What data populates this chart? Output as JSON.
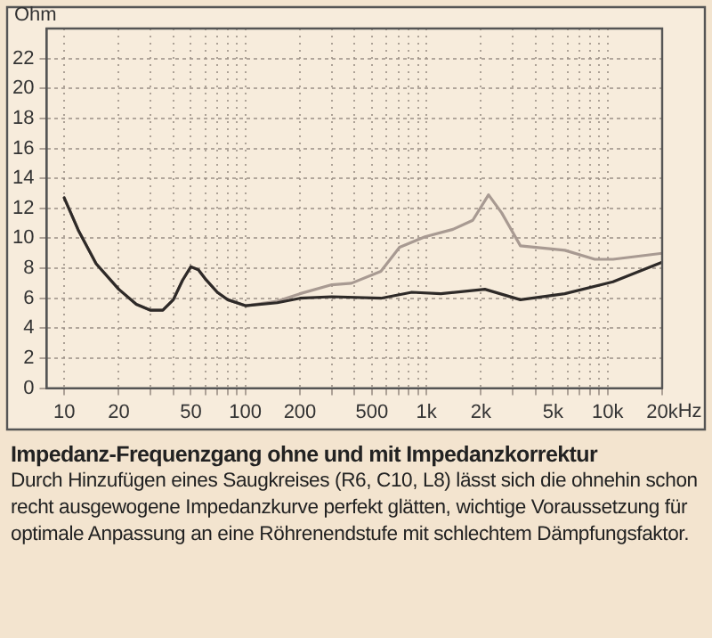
{
  "chart_data": {
    "type": "line",
    "title": "Impedanz-Frequenzgang ohne und mit Impedanzkorrektur",
    "ylabel": "Ohm",
    "annotations": [
      "Durch Hinzufügen eines Saugkreises (R6, C10, L8) lässt sich die ohnehin schon recht ausgewogene Impedanzkurve perfekt glätten, wichtige Voraussetzung für optimale Anpassung an eine Röhrenendstufe mit schlechtem Dämpfungsfaktor."
    ],
    "log": "x",
    "grid": true,
    "legend": false,
    "marker": "none",
    "line_style": "solid",
    "xlim": [
      8,
      20000
    ],
    "ylim": [
      0,
      24
    ],
    "xticks": [
      10,
      20,
      {
        "value": 30,
        "label": null
      },
      {
        "value": 40,
        "label": null
      },
      50,
      {
        "value": 60,
        "label": null
      },
      {
        "value": 70,
        "label": null
      },
      {
        "value": 80,
        "label": null
      },
      {
        "value": 90,
        "label": null
      },
      100,
      200,
      {
        "value": 300,
        "label": null
      },
      {
        "value": 400,
        "label": null
      },
      500,
      {
        "value": 600,
        "label": null
      },
      {
        "value": 700,
        "label": null
      },
      {
        "value": 800,
        "label": null
      },
      {
        "value": 900,
        "label": null
      },
      {
        "value": 1000,
        "label": "1k"
      },
      {
        "value": 2000,
        "label": "2k"
      },
      {
        "value": 3000,
        "label": null
      },
      {
        "value": 4000,
        "label": null
      },
      {
        "value": 5000,
        "label": "5k"
      },
      {
        "value": 6000,
        "label": null
      },
      {
        "value": 7000,
        "label": null
      },
      {
        "value": 8000,
        "label": null
      },
      {
        "value": 9000,
        "label": null
      },
      {
        "value": 10000,
        "label": "10k"
      },
      {
        "value": 20000,
        "label": "20k"
      }
    ],
    "xlabel": "Hz",
    "yticks": [
      0,
      2,
      4,
      6,
      8,
      10,
      12,
      14,
      16,
      18,
      20,
      22
    ],
    "series": [
      {
        "color": "#a89a92",
        "x": [
          10,
          12,
          15,
          20,
          25,
          30,
          35,
          40,
          45,
          50,
          55,
          60,
          70,
          80,
          100,
          150,
          200,
          300,
          385,
          560,
          710,
          980,
          1400,
          1800,
          2200,
          2600,
          3300,
          5800,
          8500,
          10700,
          20000
        ],
        "values": [
          12.7,
          10.5,
          8.3,
          6.6,
          5.6,
          5.2,
          5.2,
          5.9,
          7.2,
          8.1,
          7.9,
          7.3,
          6.4,
          5.9,
          5.5,
          5.8,
          6.3,
          6.9,
          7.0,
          7.8,
          9.4,
          10.1,
          10.6,
          11.2,
          12.9,
          11.7,
          9.5,
          9.2,
          8.6,
          8.6,
          9.0
        ]
      },
      {
        "color": "#2e2a28",
        "x": [
          10,
          12,
          15,
          20,
          25,
          30,
          35,
          40,
          45,
          50,
          55,
          60,
          70,
          80,
          100,
          150,
          200,
          300,
          560,
          830,
          1200,
          2100,
          3300,
          5800,
          10700,
          20000
        ],
        "values": [
          12.7,
          10.5,
          8.3,
          6.6,
          5.6,
          5.2,
          5.2,
          5.9,
          7.2,
          8.1,
          7.9,
          7.3,
          6.4,
          5.9,
          5.5,
          5.7,
          6.0,
          6.1,
          6.0,
          6.4,
          6.3,
          6.6,
          5.9,
          6.3,
          7.1,
          8.4
        ]
      }
    ]
  }
}
